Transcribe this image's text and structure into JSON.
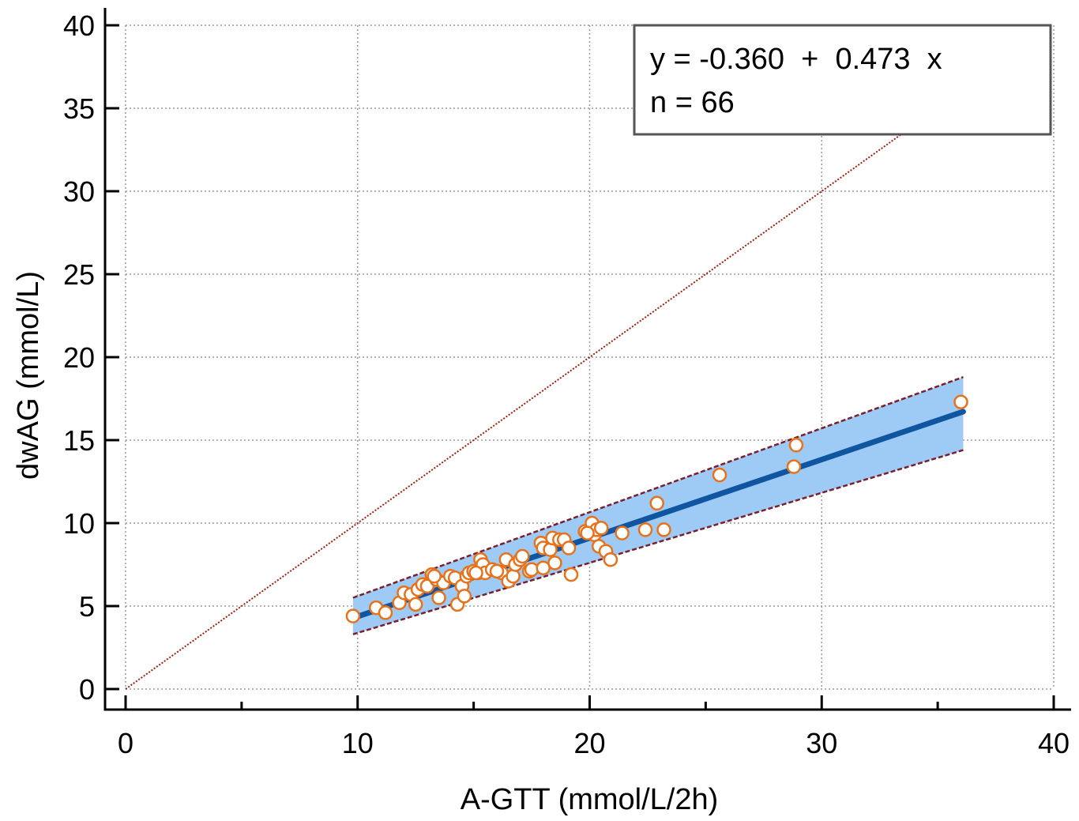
{
  "chart_data": {
    "type": "scatter",
    "xlabel": "A-GTT (mmol/L/2h)",
    "ylabel": "dwAG (mmol/L)",
    "xlim": [
      0,
      40
    ],
    "ylim": [
      0,
      40
    ],
    "xticks": [
      0,
      10,
      20,
      30,
      40
    ],
    "yticks": [
      0,
      5,
      10,
      15,
      20,
      25,
      30,
      35,
      40
    ],
    "minor_step": 5,
    "grid": true,
    "legend_position": "top-right",
    "equation": "y = -0.360  +  0.473  x",
    "n_label": "n = 66",
    "regression": {
      "intercept": -0.36,
      "slope": 0.473,
      "x_range": [
        9.8,
        36.1
      ]
    },
    "prediction_band": {
      "lower_at_start": 3.3,
      "upper_at_start": 5.5,
      "lower_at_end": 14.4,
      "upper_at_end": 18.8
    },
    "identity_line": {
      "from": [
        0,
        0
      ],
      "to": [
        40,
        40
      ]
    },
    "points": [
      [
        9.8,
        4.4
      ],
      [
        10.8,
        4.9
      ],
      [
        11.2,
        4.6
      ],
      [
        11.8,
        5.2
      ],
      [
        12.0,
        5.8
      ],
      [
        12.3,
        5.7
      ],
      [
        12.5,
        5.1
      ],
      [
        12.6,
        6.0
      ],
      [
        12.8,
        6.3
      ],
      [
        13.0,
        6.2
      ],
      [
        13.2,
        6.9
      ],
      [
        13.4,
        6.6
      ],
      [
        13.5,
        5.5
      ],
      [
        13.7,
        6.4
      ],
      [
        14.0,
        6.8
      ],
      [
        14.2,
        6.7
      ],
      [
        14.3,
        5.1
      ],
      [
        14.5,
        6.2
      ],
      [
        14.6,
        5.6
      ],
      [
        14.7,
        6.8
      ],
      [
        14.8,
        7.0
      ],
      [
        15.0,
        7.1
      ],
      [
        15.2,
        7.0
      ],
      [
        15.3,
        7.8
      ],
      [
        15.4,
        7.5
      ],
      [
        15.5,
        7.0
      ],
      [
        15.8,
        7.2
      ],
      [
        16.2,
        7.0
      ],
      [
        16.4,
        7.8
      ],
      [
        16.5,
        6.5
      ],
      [
        16.7,
        6.8
      ],
      [
        16.8,
        7.5
      ],
      [
        17.0,
        7.8
      ],
      [
        17.1,
        8.0
      ],
      [
        17.4,
        7.1
      ],
      [
        17.5,
        7.2
      ],
      [
        17.9,
        8.8
      ],
      [
        18.0,
        7.3
      ],
      [
        18.0,
        8.5
      ],
      [
        18.3,
        8.4
      ],
      [
        18.4,
        9.1
      ],
      [
        18.5,
        7.6
      ],
      [
        18.7,
        9.0
      ],
      [
        18.9,
        9.0
      ],
      [
        19.1,
        8.5
      ],
      [
        19.2,
        6.9
      ],
      [
        19.8,
        9.5
      ],
      [
        20.1,
        10.0
      ],
      [
        20.2,
        9.3
      ],
      [
        20.3,
        9.6
      ],
      [
        20.4,
        8.6
      ],
      [
        20.5,
        9.7
      ],
      [
        20.7,
        8.3
      ],
      [
        20.9,
        7.8
      ],
      [
        21.4,
        9.4
      ],
      [
        22.4,
        9.6
      ],
      [
        22.9,
        11.2
      ],
      [
        23.2,
        9.6
      ],
      [
        25.6,
        12.9
      ],
      [
        28.8,
        13.4
      ],
      [
        28.9,
        14.7
      ],
      [
        36.0,
        17.3
      ],
      [
        16.0,
        7.1
      ],
      [
        15.1,
        7.0
      ],
      [
        13.3,
        6.8
      ],
      [
        19.9,
        9.4
      ]
    ]
  },
  "colors": {
    "marker_edge": "#e8711a",
    "marker_fill": "#ffffff",
    "regression_line": "#0f55a0",
    "band_fill": "#9ecbf5",
    "band_edge": "#7a1f2e",
    "identity_line": "#a01e10",
    "grid": "#9a9a9a",
    "axis": "#000000",
    "legend_border": "#555555"
  }
}
